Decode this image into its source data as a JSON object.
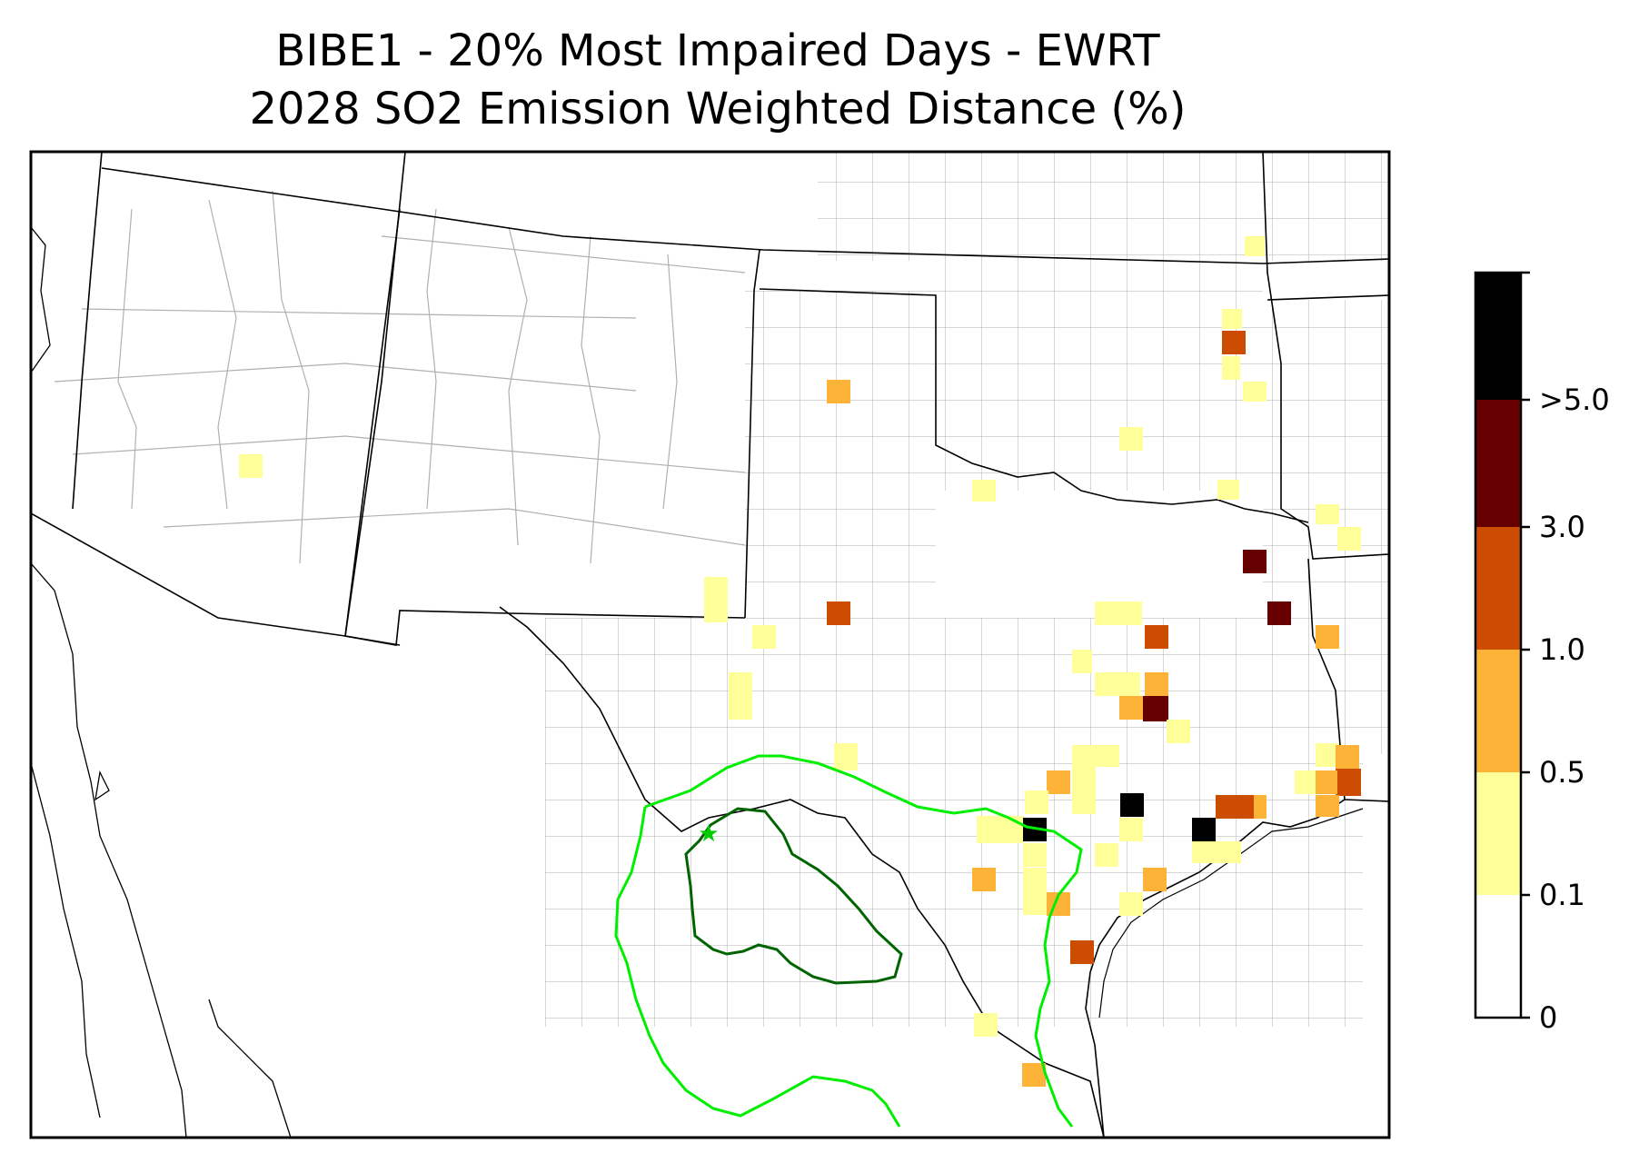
{
  "title_line1": "BIBE1 - 20% Most Impaired Days - EWRT",
  "title_line2": "2028 SO2 Emission Weighted Distance (%)",
  "colorbar": {
    "tick_labels": [
      "0",
      "0.1",
      "0.5",
      "1.0",
      "3.0",
      ">5.0"
    ],
    "colors": [
      "#ffffff",
      "#ffff99",
      "#fdb338",
      "#cc4c02",
      "#660000",
      "#000000"
    ]
  },
  "map": {
    "background": "#ffffff",
    "state_line_color": "#000000",
    "county_line_color": "#aaaaaa",
    "contour_outer_color": "#00ee00",
    "contour_inner_color": "#006400",
    "site_marker_color": "#00cc00",
    "site_marker": "star-icon"
  }
}
